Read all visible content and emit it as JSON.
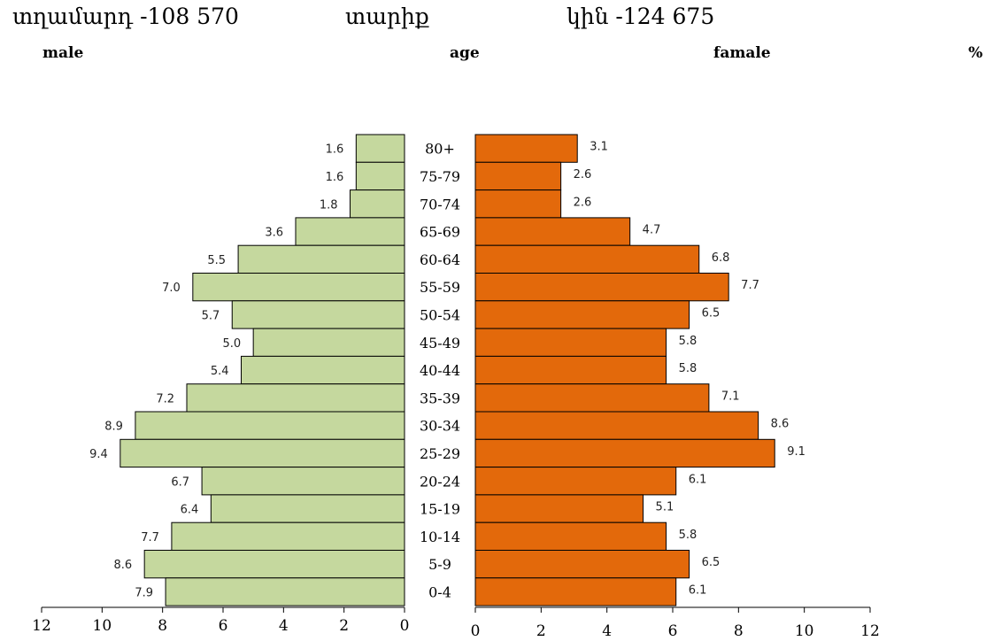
{
  "header": {
    "male_title": "տղամարդ  -108 570",
    "age_title": "տարիք",
    "female_title": "կին -124 675",
    "male_en": "male",
    "age_en": "age",
    "female_en": "famale",
    "percent": "%"
  },
  "colors": {
    "male": "#c5d89e",
    "female": "#e3690b",
    "stroke": "#000000"
  },
  "chart_data": {
    "type": "bar",
    "orientation": "horizontal",
    "categories": [
      "80+",
      "75-79",
      "70-74",
      "65-69",
      "60-64",
      "55-59",
      "50-54",
      "45-49",
      "40-44",
      "35-39",
      "30-34",
      "25-29",
      "20-24",
      "15-19",
      "10-14",
      "5-9",
      "0-4"
    ],
    "series": [
      {
        "name": "male",
        "values": [
          1.6,
          1.6,
          1.8,
          3.6,
          5.5,
          7.0,
          5.7,
          5.0,
          5.4,
          7.2,
          8.9,
          9.4,
          6.7,
          6.4,
          7.7,
          8.6,
          7.9
        ],
        "labels": [
          "1.6",
          "1.6",
          "1.8",
          "3.6",
          "5.5",
          "7.0",
          "5.7",
          "5.0",
          "5.4",
          "7.2",
          "8.9",
          "9.4",
          "6.7",
          "6.4",
          "7.7",
          "8.6",
          "7.9"
        ]
      },
      {
        "name": "famale",
        "values": [
          3.1,
          2.6,
          2.6,
          4.7,
          6.8,
          7.7,
          6.5,
          5.8,
          5.8,
          7.1,
          8.6,
          9.1,
          6.1,
          5.1,
          5.8,
          6.5,
          6.1
        ],
        "labels": [
          "3.1",
          "2.6",
          "2.6",
          "4.7",
          "6.8",
          "7.7",
          "6.5",
          "5.8",
          "5.8",
          "7.1",
          "8.6",
          "9.1",
          "6.1",
          "5.1",
          "5.8",
          "6.5",
          "6.1"
        ]
      }
    ],
    "xlim_male": [
      0,
      12
    ],
    "xlim_female": [
      0,
      12
    ],
    "xticks_male": [
      "12",
      "10",
      "8",
      "6",
      "4",
      "2",
      "0"
    ],
    "xticks_female": [
      "0",
      "2",
      "4",
      "6",
      "8",
      "10",
      "12"
    ],
    "xlabel": "%",
    "ylabel": "age"
  }
}
